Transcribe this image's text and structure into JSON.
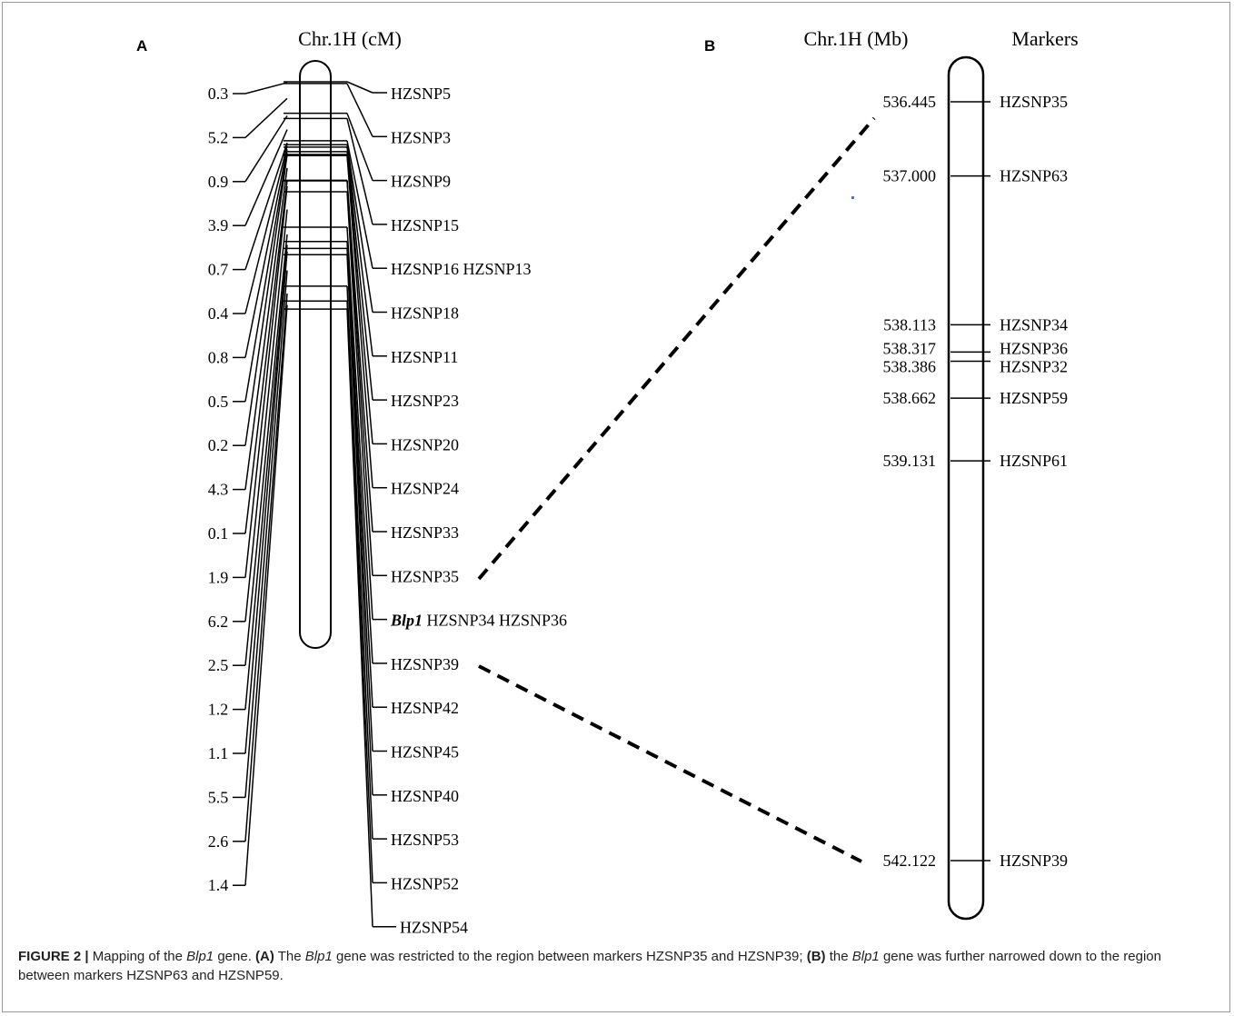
{
  "panel_a": {
    "label": "A",
    "title": "Chr.1H (cM)",
    "distances": [
      "0.3",
      "5.2",
      "0.9",
      "3.9",
      "0.7",
      "0.4",
      "0.8",
      "0.5",
      "0.2",
      "4.3",
      "0.1",
      "1.9",
      "6.2",
      "2.5",
      "1.2",
      "1.1",
      "5.5",
      "2.6",
      "1.4"
    ],
    "markers": [
      "HZSNP5",
      "HZSNP3",
      "HZSNP9",
      "HZSNP15",
      "HZSNP16 HZSNP13",
      "HZSNP18",
      "HZSNP11",
      "HZSNP23",
      "HZSNP20",
      "HZSNP24",
      "HZSNP33",
      "HZSNP35",
      "HZSNP34 HZSNP36",
      "HZSNP39",
      "HZSNP42",
      "HZSNP45",
      "HZSNP40",
      "HZSNP53",
      "HZSNP52",
      "HZSNP54"
    ],
    "gene_label": "Blp1"
  },
  "panel_b": {
    "label": "B",
    "title": "Chr.1H (Mb)",
    "markers_title": "Markers",
    "positions": [
      {
        "mb": "536.445",
        "marker": "HZSNP35"
      },
      {
        "mb": "537.000",
        "marker": "HZSNP63"
      },
      {
        "mb": "538.113",
        "marker": "HZSNP34"
      },
      {
        "mb": "538.317",
        "marker": "HZSNP36"
      },
      {
        "mb": "538.386",
        "marker": "HZSNP32"
      },
      {
        "mb": "538.662",
        "marker": "HZSNP59"
      },
      {
        "mb": "539.131",
        "marker": "HZSNP61"
      },
      {
        "mb": "542.122",
        "marker": "HZSNP39"
      }
    ]
  },
  "caption": {
    "figure_label": "FIGURE 2 |",
    "t1": " Mapping of the ",
    "gene": "Blp1",
    "t2": " gene. ",
    "a_label": "(A)",
    "t3": " The ",
    "t4": " gene was restricted to the region between markers HZSNP35 and HZSNP39; ",
    "b_label": "(B)",
    "t5": " the ",
    "t6": " gene was further narrowed down to the region between markers HZSNP63 and HZSNP59."
  }
}
